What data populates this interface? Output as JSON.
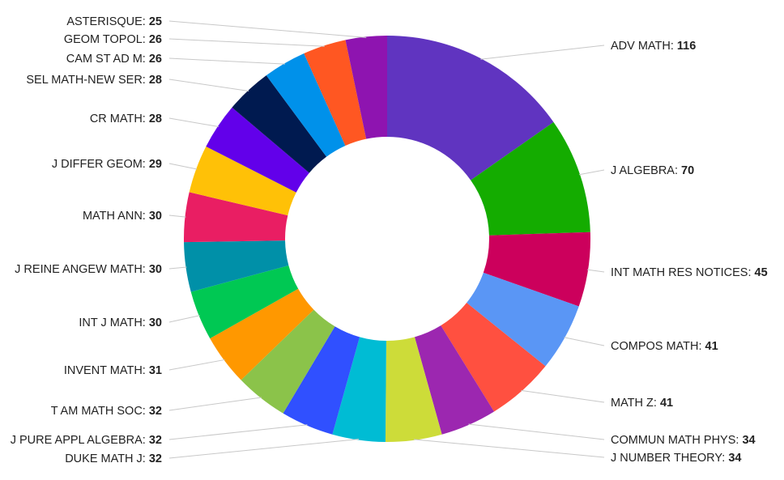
{
  "chart_data": {
    "type": "pie",
    "donut": true,
    "title": "",
    "slices": [
      {
        "label": "ADV MATH",
        "value": 116,
        "color": "#6034c0"
      },
      {
        "label": "J ALGEBRA",
        "value": 70,
        "color": "#14ac00"
      },
      {
        "label": "INT MATH RES NOTICES",
        "value": 45,
        "color": "#cc005c"
      },
      {
        "label": "COMPOS MATH",
        "value": 41,
        "color": "#5a96f5"
      },
      {
        "label": "MATH Z",
        "value": 41,
        "color": "#ff5040"
      },
      {
        "label": "COMMUN MATH PHYS",
        "value": 34,
        "color": "#9c27b0"
      },
      {
        "label": "J NUMBER THEORY",
        "value": 34,
        "color": "#cddc39"
      },
      {
        "label": "DUKE MATH J",
        "value": 32,
        "color": "#00bcd4"
      },
      {
        "label": "J PURE APPL ALGEBRA",
        "value": 32,
        "color": "#3050ff"
      },
      {
        "label": "T AM MATH SOC",
        "value": 32,
        "color": "#8bc34a"
      },
      {
        "label": "INVENT MATH",
        "value": 31,
        "color": "#ff9800"
      },
      {
        "label": "INT J MATH",
        "value": 30,
        "color": "#00c853"
      },
      {
        "label": "J REINE ANGEW MATH",
        "value": 30,
        "color": "#0090a8"
      },
      {
        "label": "MATH ANN",
        "value": 30,
        "color": "#e91e63"
      },
      {
        "label": "J DIFFER GEOM",
        "value": 29,
        "color": "#ffc107"
      },
      {
        "label": "CR MATH",
        "value": 28,
        "color": "#6200ea"
      },
      {
        "label": "SEL MATH-NEW SER",
        "value": 28,
        "color": "#001a50"
      },
      {
        "label": "CAM ST AD M",
        "value": 26,
        "color": "#0091ea"
      },
      {
        "label": "GEOM TOPOL",
        "value": 26,
        "color": "#ff5722"
      },
      {
        "label": "ASTERISQUE",
        "value": 25,
        "color": "#8e14b0"
      }
    ]
  }
}
